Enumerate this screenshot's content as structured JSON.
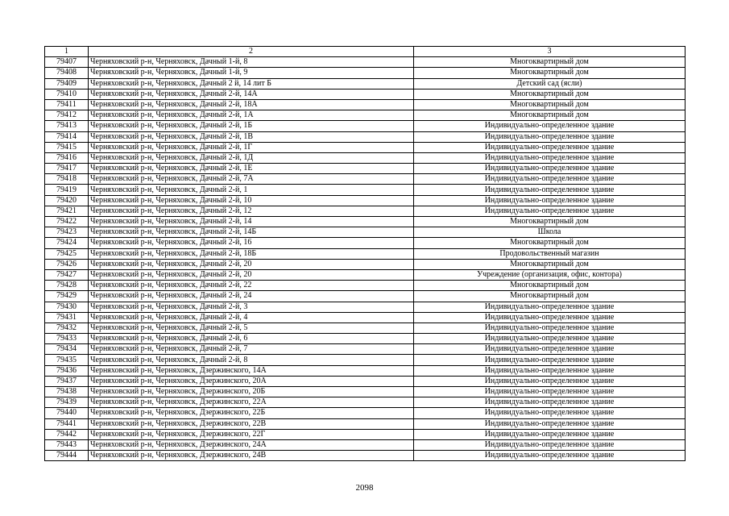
{
  "table": {
    "headers": [
      "1",
      "2",
      "3"
    ],
    "rows": [
      [
        "79407",
        "Черняховский р-н, Черняховск, Дачный 1-й, 8",
        "Многоквартирный дом"
      ],
      [
        "79408",
        "Черняховский р-н, Черняховск, Дачный 1-й, 9",
        "Многоквартирный дом"
      ],
      [
        "79409",
        "Черняховский р-н, Черняховск, Дачный 2 й, 14 лит  Б",
        "Детский сад (ясли)"
      ],
      [
        "79410",
        "Черняховский р-н, Черняховск, Дачный 2-й,  14А",
        "Многоквартирный дом"
      ],
      [
        "79411",
        "Черняховский р-н, Черняховск, Дачный 2-й,  18А",
        "Многоквартирный дом"
      ],
      [
        "79412",
        "Черняховский р-н, Черняховск, Дачный 2-й,  1А",
        "Многоквартирный дом"
      ],
      [
        "79413",
        "Черняховский р-н, Черняховск, Дачный 2-й,  1Б",
        "Индивидуально-определенное здание"
      ],
      [
        "79414",
        "Черняховский р-н, Черняховск, Дачный 2-й,  1В",
        "Индивидуально-определенное здание"
      ],
      [
        "79415",
        "Черняховский р-н, Черняховск, Дачный 2-й,  1Г",
        "Индивидуально-определенное здание"
      ],
      [
        "79416",
        "Черняховский р-н, Черняховск, Дачный 2-й,  1Д",
        "Индивидуально-определенное здание"
      ],
      [
        "79417",
        "Черняховский р-н, Черняховск, Дачный 2-й,  1Е",
        "Индивидуально-определенное здание"
      ],
      [
        "79418",
        "Черняховский р-н, Черняховск, Дачный 2-й,  7А",
        "Индивидуально-определенное здание"
      ],
      [
        "79419",
        "Черняховский р-н, Черняховск, Дачный 2-й, 1",
        "Индивидуально-определенное здание"
      ],
      [
        "79420",
        "Черняховский р-н, Черняховск, Дачный 2-й, 10",
        "Индивидуально-определенное здание"
      ],
      [
        "79421",
        "Черняховский р-н, Черняховск, Дачный 2-й, 12",
        "Индивидуально-определенное здание"
      ],
      [
        "79422",
        "Черняховский р-н, Черняховск, Дачный 2-й, 14",
        "Многоквартирный дом"
      ],
      [
        "79423",
        "Черняховский р-н, Черняховск, Дачный 2-й, 14Б",
        "Школа"
      ],
      [
        "79424",
        "Черняховский р-н, Черняховск, Дачный 2-й, 16",
        "Многоквартирный дом"
      ],
      [
        "79425",
        "Черняховский р-н, Черняховск, Дачный 2-й, 18Б",
        "Продовольственный магазин"
      ],
      [
        "79426",
        "Черняховский р-н, Черняховск, Дачный 2-й, 20",
        "Многоквартирный дом"
      ],
      [
        "79427",
        "Черняховский р-н, Черняховск, Дачный 2-й, 20",
        "Учреждение (организация, офис, контора)"
      ],
      [
        "79428",
        "Черняховский р-н, Черняховск, Дачный 2-й, 22",
        "Многоквартирный дом"
      ],
      [
        "79429",
        "Черняховский р-н, Черняховск, Дачный 2-й, 24",
        "Многоквартирный дом"
      ],
      [
        "79430",
        "Черняховский р-н, Черняховск, Дачный 2-й, 3",
        "Индивидуально-определенное здание"
      ],
      [
        "79431",
        "Черняховский р-н, Черняховск, Дачный 2-й, 4",
        "Индивидуально-определенное здание"
      ],
      [
        "79432",
        "Черняховский р-н, Черняховск, Дачный 2-й, 5",
        "Индивидуально-определенное здание"
      ],
      [
        "79433",
        "Черняховский р-н, Черняховск, Дачный 2-й, 6",
        "Индивидуально-определенное здание"
      ],
      [
        "79434",
        "Черняховский р-н, Черняховск, Дачный 2-й, 7",
        "Индивидуально-определенное здание"
      ],
      [
        "79435",
        "Черняховский р-н, Черняховск, Дачный 2-й, 8",
        "Индивидуально-определенное здание"
      ],
      [
        "79436",
        "Черняховский р-н, Черняховск, Дзержинского,  14А",
        "Индивидуально-определенное здание"
      ],
      [
        "79437",
        "Черняховский р-н, Черняховск, Дзержинского,  20А",
        "Индивидуально-определенное здание"
      ],
      [
        "79438",
        "Черняховский р-н, Черняховск, Дзержинского,  20Б",
        "Индивидуально-определенное здание"
      ],
      [
        "79439",
        "Черняховский р-н, Черняховск, Дзержинского,  22А",
        "Индивидуально-определенное здание"
      ],
      [
        "79440",
        "Черняховский р-н, Черняховск, Дзержинского,  22Б",
        "Индивидуально-определенное здание"
      ],
      [
        "79441",
        "Черняховский р-н, Черняховск, Дзержинского,  22В",
        "Индивидуально-определенное здание"
      ],
      [
        "79442",
        "Черняховский р-н, Черняховск, Дзержинского,  22Г",
        "Индивидуально-определенное здание"
      ],
      [
        "79443",
        "Черняховский р-н, Черняховск, Дзержинского,  24А",
        "Индивидуально-определенное здание"
      ],
      [
        "79444",
        "Черняховский р-н, Черняховск, Дзержинского,  24В",
        "Индивидуально-определенное здание"
      ]
    ]
  },
  "page_number": "2098"
}
